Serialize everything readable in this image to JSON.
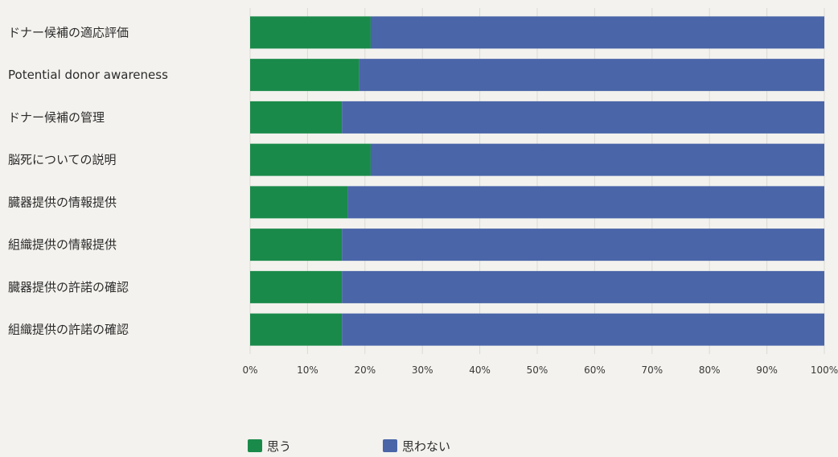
{
  "chart_data": {
    "type": "bar",
    "orientation": "horizontal",
    "stacked": true,
    "categories": [
      "ドナー候補の適応評価",
      "Potential donor awareness",
      "ドナー候補の管理",
      "脳死についての説明",
      "臓器提供の情報提供",
      "組織提供の情報提供",
      "臓器提供の許諾の確認",
      "組織提供の許諾の確認"
    ],
    "series": [
      {
        "name": "思う",
        "color": "#1a8a4a",
        "values": [
          21,
          19,
          16,
          21,
          17,
          16,
          16,
          16
        ]
      },
      {
        "name": "思わない",
        "color": "#4a65a8",
        "values": [
          79,
          81,
          84,
          79,
          83,
          84,
          84,
          84
        ]
      }
    ],
    "xlim": [
      0,
      100
    ],
    "xticks": [
      "0%",
      "10%",
      "20%",
      "30%",
      "40%",
      "50%",
      "60%",
      "70%",
      "80%",
      "90%",
      "100%"
    ],
    "grid": true,
    "legend_position": "bottom-center"
  }
}
